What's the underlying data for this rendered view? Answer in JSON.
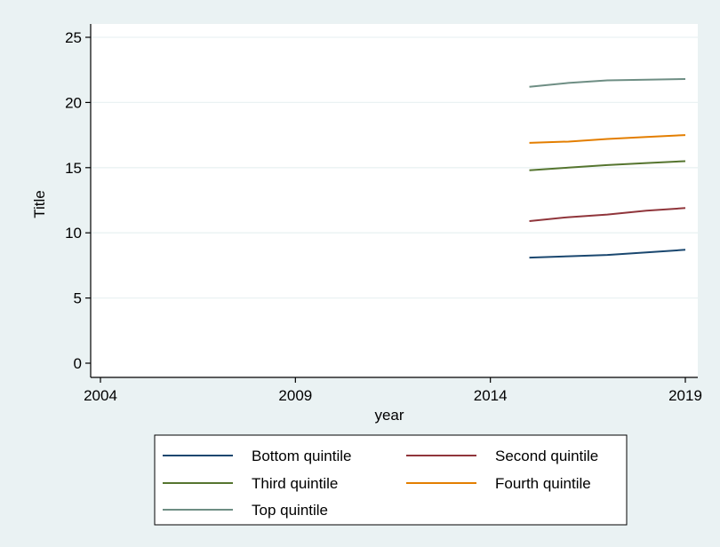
{
  "chart_data": {
    "type": "line",
    "title": "",
    "xlabel": "year",
    "ylabel": "Title",
    "xlim": [
      2004,
      2019
    ],
    "ylim": [
      0,
      25
    ],
    "x_ticks": [
      "2004",
      "2009",
      "2014",
      "2019"
    ],
    "y_ticks": [
      "0",
      "5",
      "10",
      "15",
      "20",
      "25"
    ],
    "grid": "horizontal",
    "legend_position": "bottom",
    "x": [
      2015,
      2016,
      2017,
      2018,
      2019
    ],
    "series": [
      {
        "name": "Bottom quintile",
        "color": "#1a476f",
        "values": [
          8.1,
          8.2,
          8.3,
          8.5,
          8.7
        ]
      },
      {
        "name": "Second quintile",
        "color": "#90353b",
        "values": [
          10.9,
          11.2,
          11.4,
          11.7,
          11.9
        ]
      },
      {
        "name": "Third quintile",
        "color": "#55752f",
        "values": [
          14.8,
          15.0,
          15.2,
          15.35,
          15.5
        ]
      },
      {
        "name": "Fourth quintile",
        "color": "#e37e00",
        "values": [
          16.9,
          17.0,
          17.2,
          17.35,
          17.5
        ]
      },
      {
        "name": "Top quintile",
        "color": "#6e8e84",
        "values": [
          21.2,
          21.5,
          21.7,
          21.75,
          21.8
        ]
      }
    ]
  }
}
